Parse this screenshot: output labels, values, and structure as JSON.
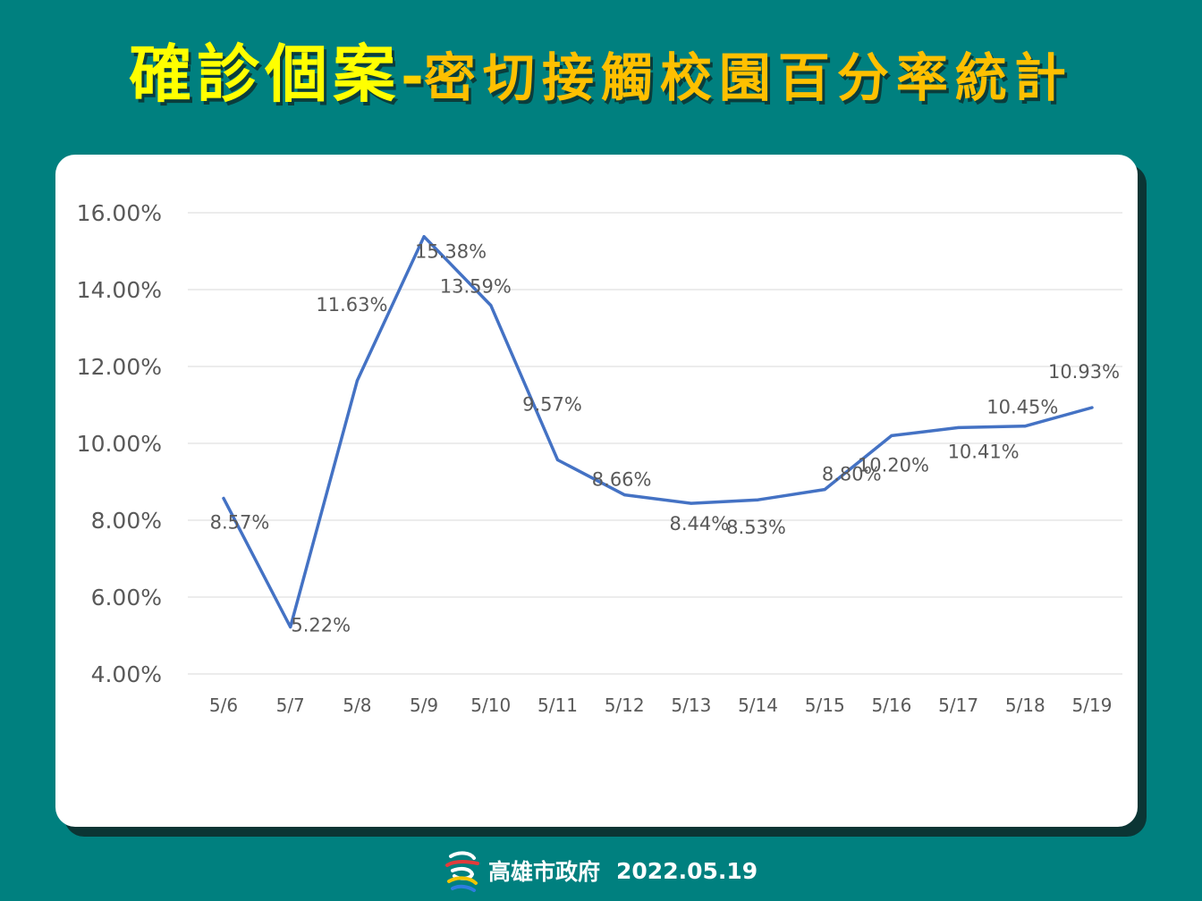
{
  "title": {
    "main": "確診個案",
    "separator": "-",
    "sub": "密切接觸校園百分率統計"
  },
  "footer": {
    "logo_icon": "kaohsiung-city-logo-icon",
    "org": "高雄市政府",
    "date": "2022.05.19"
  },
  "colors": {
    "background": "#00807f",
    "title_main": "#ffff00",
    "title_sub": "#ffc000",
    "line": "#4472c4",
    "grid": "#d9d9d9",
    "text": "#595959"
  },
  "chart_data": {
    "type": "line",
    "title": "",
    "xlabel": "",
    "ylabel": "",
    "categories": [
      "5/6",
      "5/7",
      "5/8",
      "5/9",
      "5/10",
      "5/11",
      "5/12",
      "5/13",
      "5/14",
      "5/15",
      "5/16",
      "5/17",
      "5/18",
      "5/19"
    ],
    "series": [
      {
        "values": [
          8.57,
          5.22,
          11.63,
          15.38,
          13.59,
          9.57,
          8.66,
          8.44,
          8.53,
          8.8,
          10.2,
          10.41,
          10.45,
          10.93
        ],
        "labels": [
          "8.57%",
          "5.22%",
          "11.63%",
          "15.38%",
          "13.59%",
          "9.57%",
          "8.66%",
          "8.44%",
          "8.53%",
          "8.80%",
          "10.20%",
          "10.41%",
          "10.45%",
          "10.93%"
        ]
      }
    ],
    "ylim": [
      4,
      16
    ],
    "yticks": [
      4,
      6,
      8,
      10,
      12,
      14,
      16
    ],
    "ytick_labels": [
      "4.00%",
      "6.00%",
      "8.00%",
      "10.00%",
      "12.00%",
      "14.00%",
      "16.00%"
    ],
    "grid": true,
    "legend": "none"
  }
}
